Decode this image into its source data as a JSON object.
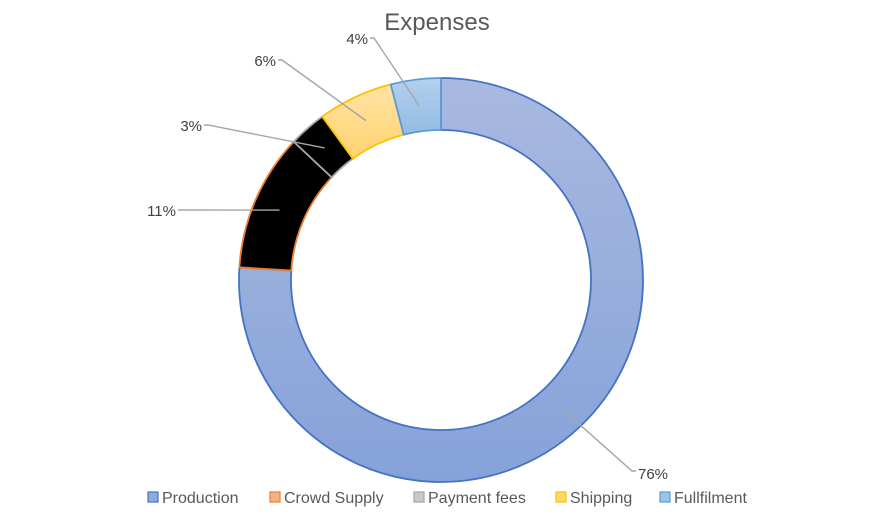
{
  "chart_data": {
    "type": "pie",
    "variant": "doughnut",
    "title": "Expenses",
    "categories": [
      "Production",
      "Crowd Supply",
      "Payment fees",
      "Shipping",
      "Fullfilment"
    ],
    "values": [
      76,
      11,
      3,
      6,
      4
    ],
    "labels": [
      "76%",
      "11%",
      "3%",
      "6%",
      "4%"
    ],
    "unit": "%",
    "legend_position": "bottom",
    "colors": {
      "Production": {
        "fill": "#8faadc",
        "stroke": "#4472c4"
      },
      "Crowd Supply": {
        "fill": "#f4b183",
        "stroke": "#ed7d31"
      },
      "Payment fees": {
        "fill": "#c9c9c9",
        "stroke": "#a5a5a5"
      },
      "Shipping": {
        "fill": "#ffd966",
        "stroke": "#ffc000"
      },
      "Fullfilment": {
        "fill": "#9dc3e6",
        "stroke": "#5b9bd5"
      }
    }
  }
}
